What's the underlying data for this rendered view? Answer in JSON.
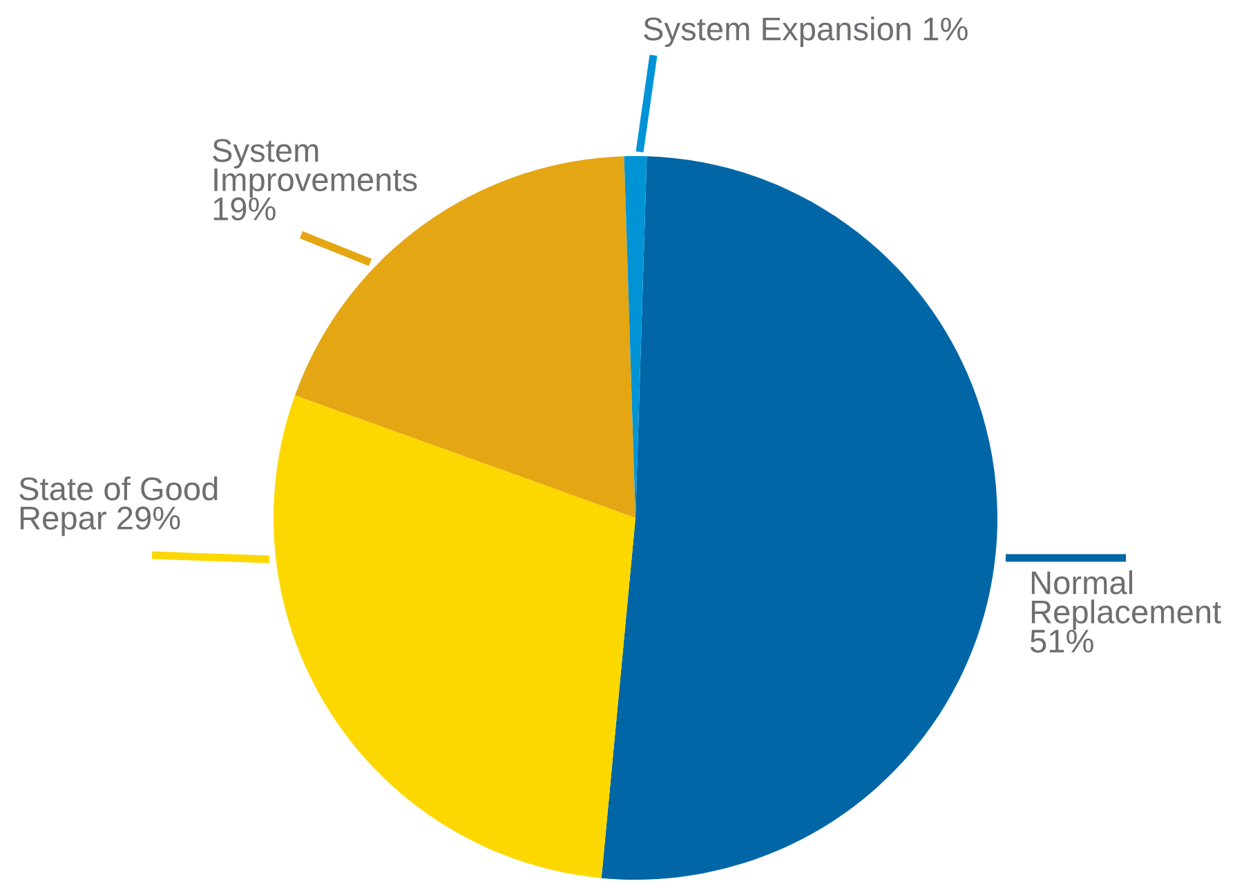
{
  "chart_data": {
    "type": "pie",
    "categories": [
      "Normal\nReplacement",
      "State of Good\nRepar",
      "System\nImprovements",
      "System Expansion"
    ],
    "values": [
      51,
      29,
      19,
      1
    ],
    "colors": [
      "#0066a6",
      "#fdd800",
      "#e5a614",
      "#0094d6"
    ],
    "value_labels": [
      "51%",
      "29%",
      "19%",
      "1%"
    ]
  }
}
